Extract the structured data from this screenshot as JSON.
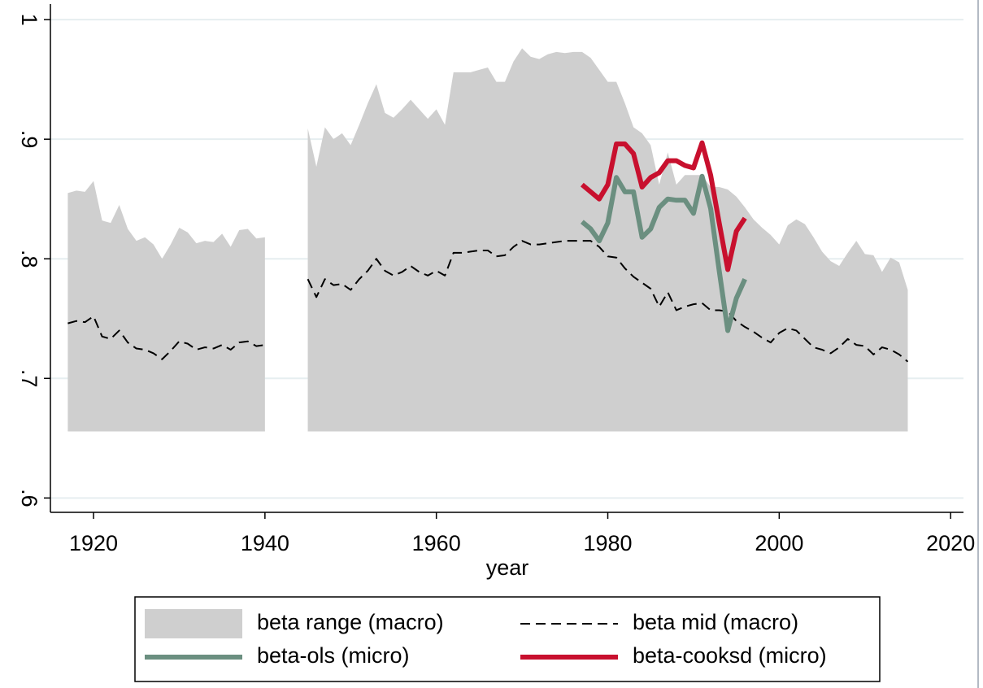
{
  "chart_data": {
    "type": "line",
    "x_label": "year",
    "xlim": [
      1914.97,
      2021.5
    ],
    "ylim": [
      0.588,
      1.013
    ],
    "xticks": [
      1920,
      1940,
      1960,
      1980,
      2000,
      2020
    ],
    "yticks": [
      {
        "value": 0.6,
        "label": ".6"
      },
      {
        "value": 0.7,
        "label": ".7"
      },
      {
        "value": 0.8,
        "label": ".8"
      },
      {
        "value": 0.9,
        "label": ".9"
      },
      1
    ],
    "grid": true,
    "series": [
      {
        "name": "beta range (macro)",
        "kind": "area",
        "color": "#cfcfcf",
        "base": 0.656,
        "x": [
          1917,
          1918,
          1919,
          1920,
          1921,
          1922,
          1923,
          1924,
          1925,
          1926,
          1927,
          1928,
          1929,
          1930,
          1931,
          1932,
          1933,
          1934,
          1935,
          1936,
          1937,
          1938,
          1939,
          1940,
          1941,
          1942,
          1943,
          1944,
          1945,
          1946,
          1947,
          1948,
          1949,
          1950,
          1951,
          1952,
          1953,
          1954,
          1955,
          1956,
          1957,
          1958,
          1959,
          1960,
          1961,
          1962,
          1963,
          1964,
          1965,
          1966,
          1967,
          1968,
          1969,
          1970,
          1971,
          1972,
          1973,
          1974,
          1975,
          1976,
          1977,
          1978,
          1979,
          1980,
          1981,
          1982,
          1983,
          1984,
          1985,
          1986,
          1987,
          1988,
          1989,
          1990,
          1991,
          1992,
          1993,
          1994,
          1995,
          1996,
          1997,
          1998,
          1999,
          2000,
          2001,
          2002,
          2003,
          2004,
          2005,
          2006,
          2007,
          2008,
          2009,
          2010,
          2011,
          2012,
          2013,
          2014,
          2015
        ],
        "values": [
          0.855,
          0.857,
          0.856,
          0.865,
          0.832,
          0.83,
          0.845,
          0.825,
          0.815,
          0.818,
          0.812,
          0.8,
          0.812,
          0.826,
          0.822,
          0.813,
          0.815,
          0.814,
          0.821,
          0.81,
          0.824,
          0.825,
          0.817,
          0.818,
          null,
          null,
          null,
          null,
          0.909,
          0.877,
          0.91,
          0.9,
          0.905,
          0.895,
          0.912,
          0.93,
          0.946,
          0.922,
          0.918,
          0.925,
          0.933,
          0.925,
          0.917,
          0.925,
          0.912,
          0.956,
          0.956,
          0.956,
          0.958,
          0.96,
          0.948,
          0.948,
          0.965,
          0.976,
          0.969,
          0.967,
          0.971,
          0.973,
          0.972,
          0.973,
          0.973,
          0.968,
          0.958,
          0.948,
          0.948,
          0.93,
          0.91,
          0.905,
          0.895,
          0.862,
          0.889,
          0.862,
          0.87,
          0.87,
          0.87,
          0.86,
          0.86,
          0.858,
          0.852,
          0.843,
          0.833,
          0.826,
          0.82,
          0.812,
          0.828,
          0.833,
          0.829,
          0.818,
          0.806,
          0.798,
          0.794,
          0.805,
          0.815,
          0.804,
          0.803,
          0.789,
          0.801,
          0.797,
          0.774
        ]
      },
      {
        "name": "beta mid (macro)",
        "kind": "line",
        "style": "dashed",
        "color": "#000000",
        "x": [
          1917,
          1918,
          1919,
          1920,
          1921,
          1922,
          1923,
          1924,
          1925,
          1926,
          1927,
          1928,
          1929,
          1930,
          1931,
          1932,
          1933,
          1934,
          1935,
          1936,
          1937,
          1938,
          1939,
          1940,
          1941,
          1942,
          1943,
          1944,
          1945,
          1946,
          1947,
          1948,
          1949,
          1950,
          1951,
          1952,
          1953,
          1954,
          1955,
          1956,
          1957,
          1958,
          1959,
          1960,
          1961,
          1962,
          1963,
          1964,
          1965,
          1966,
          1967,
          1968,
          1969,
          1970,
          1971,
          1972,
          1973,
          1974,
          1975,
          1976,
          1977,
          1978,
          1979,
          1980,
          1981,
          1982,
          1983,
          1984,
          1985,
          1986,
          1987,
          1988,
          1989,
          1990,
          1991,
          1992,
          1993,
          1994,
          1995,
          1996,
          1997,
          1998,
          1999,
          2000,
          2001,
          2002,
          2003,
          2004,
          2005,
          2006,
          2007,
          2008,
          2009,
          2010,
          2011,
          2012,
          2013,
          2014,
          2015
        ],
        "values": [
          0.746,
          0.748,
          0.747,
          0.752,
          0.735,
          0.733,
          0.74,
          0.73,
          0.725,
          0.724,
          0.721,
          0.716,
          0.723,
          0.731,
          0.729,
          0.724,
          0.726,
          0.725,
          0.728,
          0.724,
          0.73,
          0.731,
          0.727,
          0.728,
          null,
          null,
          null,
          null,
          0.783,
          0.768,
          0.783,
          0.778,
          0.779,
          0.774,
          0.783,
          0.79,
          0.8,
          0.79,
          0.786,
          0.789,
          0.794,
          0.789,
          0.786,
          0.79,
          0.786,
          0.805,
          0.805,
          0.806,
          0.807,
          0.807,
          0.802,
          0.803,
          0.81,
          0.815,
          0.812,
          0.812,
          0.813,
          0.814,
          0.815,
          0.815,
          0.815,
          0.815,
          0.81,
          0.802,
          0.801,
          0.792,
          0.785,
          0.78,
          0.775,
          0.76,
          0.772,
          0.757,
          0.76,
          0.762,
          0.763,
          0.757,
          0.757,
          0.756,
          0.748,
          0.743,
          0.739,
          0.734,
          0.73,
          0.738,
          0.742,
          0.74,
          0.733,
          0.726,
          0.724,
          0.721,
          0.726,
          0.733,
          0.728,
          0.727,
          0.72,
          0.726,
          0.724,
          0.72,
          0.714
        ]
      },
      {
        "name": "beta-ols (micro)",
        "kind": "line",
        "style": "solid",
        "color": "#6b8f80",
        "x": [
          1977,
          1978,
          1979,
          1980,
          1981,
          1982,
          1983,
          1984,
          1985,
          1986,
          1987,
          1988,
          1989,
          1990,
          1991,
          1992,
          1993,
          1994,
          1995,
          1996
        ],
        "values": [
          0.831,
          0.825,
          0.815,
          0.83,
          0.868,
          0.856,
          0.856,
          0.818,
          0.825,
          0.843,
          0.85,
          0.849,
          0.849,
          0.838,
          0.869,
          0.842,
          0.79,
          0.74,
          0.767,
          0.783
        ]
      },
      {
        "name": "beta-cooksd (micro)",
        "kind": "line",
        "style": "solid",
        "color": "#c8102e",
        "x": [
          1977,
          1978,
          1979,
          1980,
          1981,
          1982,
          1983,
          1984,
          1985,
          1986,
          1987,
          1988,
          1989,
          1990,
          1991,
          1992,
          1993,
          1994,
          1995,
          1996
        ],
        "values": [
          0.862,
          0.856,
          0.85,
          0.862,
          0.896,
          0.896,
          0.888,
          0.86,
          0.868,
          0.872,
          0.882,
          0.882,
          0.878,
          0.876,
          0.897,
          0.87,
          0.83,
          0.791,
          0.823,
          0.834
        ]
      }
    ]
  }
}
